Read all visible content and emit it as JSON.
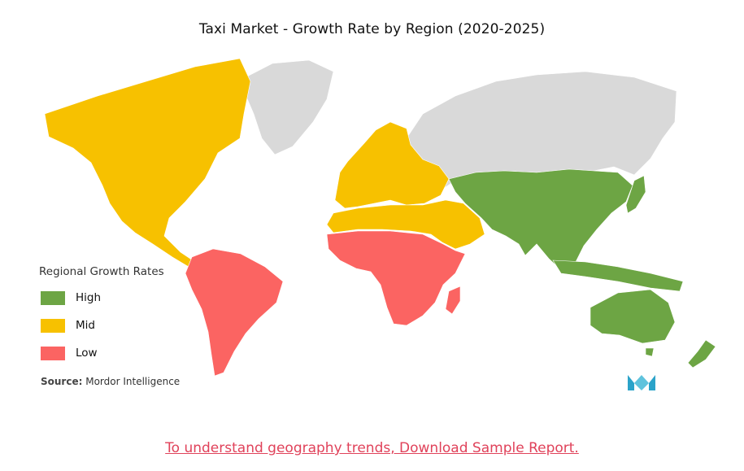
{
  "title": "Taxi Market  - Growth Rate by Region (2020-2025)",
  "legend": {
    "title": "Regional Growth Rates",
    "items": [
      {
        "label": "High",
        "color": "#6da544"
      },
      {
        "label": "Mid",
        "color": "#f7c100"
      },
      {
        "label": "Low",
        "color": "#fb6462"
      }
    ]
  },
  "no_data_color": "#d9d9d9",
  "regions": [
    {
      "name": "North America",
      "level": "Mid"
    },
    {
      "name": "Europe",
      "level": "Mid"
    },
    {
      "name": "Middle East",
      "level": "Mid"
    },
    {
      "name": "South America",
      "level": "Low"
    },
    {
      "name": "Africa",
      "level": "Low"
    },
    {
      "name": "Asia-Pacific",
      "level": "High"
    },
    {
      "name": "Greenland",
      "level": "No data"
    },
    {
      "name": "Russia",
      "level": "No data"
    }
  ],
  "source": {
    "label": "Source:",
    "value": "Mordor Intelligence"
  },
  "logo": {
    "icon": "mordor-intelligence-logo-icon",
    "colors": [
      "#2ba3c9",
      "#5fc3dd"
    ]
  },
  "cta": {
    "text": "To understand geography trends, Download Sample Report."
  }
}
